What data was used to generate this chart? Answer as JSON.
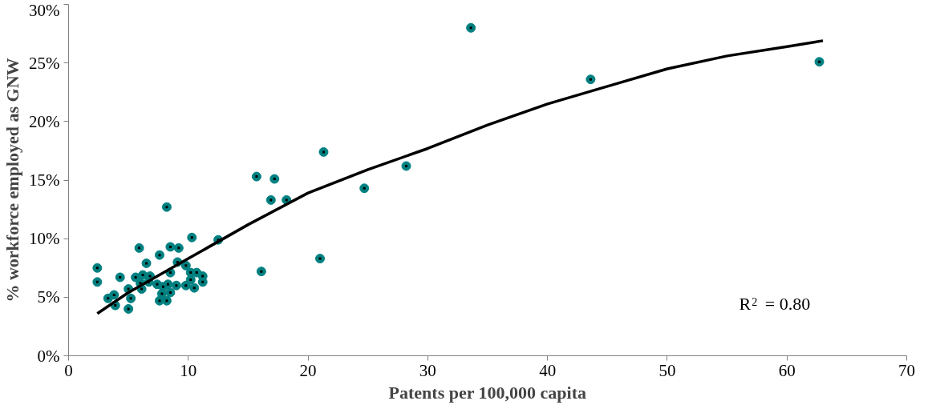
{
  "chart_data": {
    "type": "scatter",
    "xlabel": "Patents per 100,000 capita",
    "ylabel": "% workforce employed as GNW",
    "xlim": [
      0,
      70
    ],
    "xticks": [
      0,
      10,
      20,
      30,
      40,
      50,
      60,
      70
    ],
    "ylim": [
      0,
      30
    ],
    "yticks": [
      {
        "value": 0,
        "label": "0%"
      },
      {
        "value": 5,
        "label": "5%"
      },
      {
        "value": 10,
        "label": "10%"
      },
      {
        "value": 15,
        "label": "15%"
      },
      {
        "value": 20,
        "label": "20%"
      },
      {
        "value": 25,
        "label": "25%"
      },
      {
        "value": 30,
        "label": "30%"
      }
    ],
    "grid": false,
    "annotations": [
      "R$^{2}$ = 0.80"
    ],
    "series": [
      {
        "marker": "circle",
        "color": "#008080",
        "x": [
          8.2,
          10.3,
          12.5,
          5.9,
          8.5,
          9.2,
          7.6,
          6.5,
          2.4,
          2.4,
          4.3,
          5.6,
          6.2,
          6.8,
          8.5,
          9.1,
          9.8,
          10.2,
          10.7,
          11.2,
          11.2,
          10.2,
          9.8,
          10.5,
          9.0,
          8.3,
          7.9,
          7.4,
          6.0,
          6.7,
          6.1,
          5.0,
          3.8,
          3.3,
          3.9,
          5.2,
          5.0,
          7.6,
          8.2,
          7.8,
          8.5,
          21.3,
          15.7,
          17.2,
          16.9,
          18.2,
          24.7,
          28.2,
          21.0,
          16.1,
          33.6,
          43.6,
          62.7
        ],
        "values": [
          12.7,
          10.1,
          9.9,
          9.2,
          9.3,
          9.2,
          8.6,
          7.9,
          7.5,
          6.3,
          6.7,
          6.7,
          6.9,
          6.8,
          7.1,
          8.0,
          7.7,
          7.1,
          7.1,
          6.8,
          6.3,
          6.5,
          6.0,
          5.8,
          6.0,
          6.1,
          5.9,
          6.1,
          6.2,
          6.3,
          5.7,
          5.7,
          5.2,
          4.9,
          4.3,
          4.9,
          4.0,
          4.7,
          4.7,
          5.3,
          5.4,
          17.4,
          15.3,
          15.1,
          13.3,
          13.3,
          14.3,
          16.2,
          8.3,
          7.2,
          28.0,
          23.6,
          25.1
        ]
      },
      {
        "type": "line",
        "color": "#000000",
        "x": [
          2.4,
          5,
          10,
          15,
          20,
          25,
          30,
          35,
          40,
          45,
          50,
          55,
          60,
          63
        ],
        "values": [
          3.6,
          5.4,
          8.3,
          11.2,
          13.9,
          15.9,
          17.7,
          19.7,
          21.5,
          23.0,
          24.5,
          25.6,
          26.4,
          26.9
        ]
      }
    ]
  }
}
